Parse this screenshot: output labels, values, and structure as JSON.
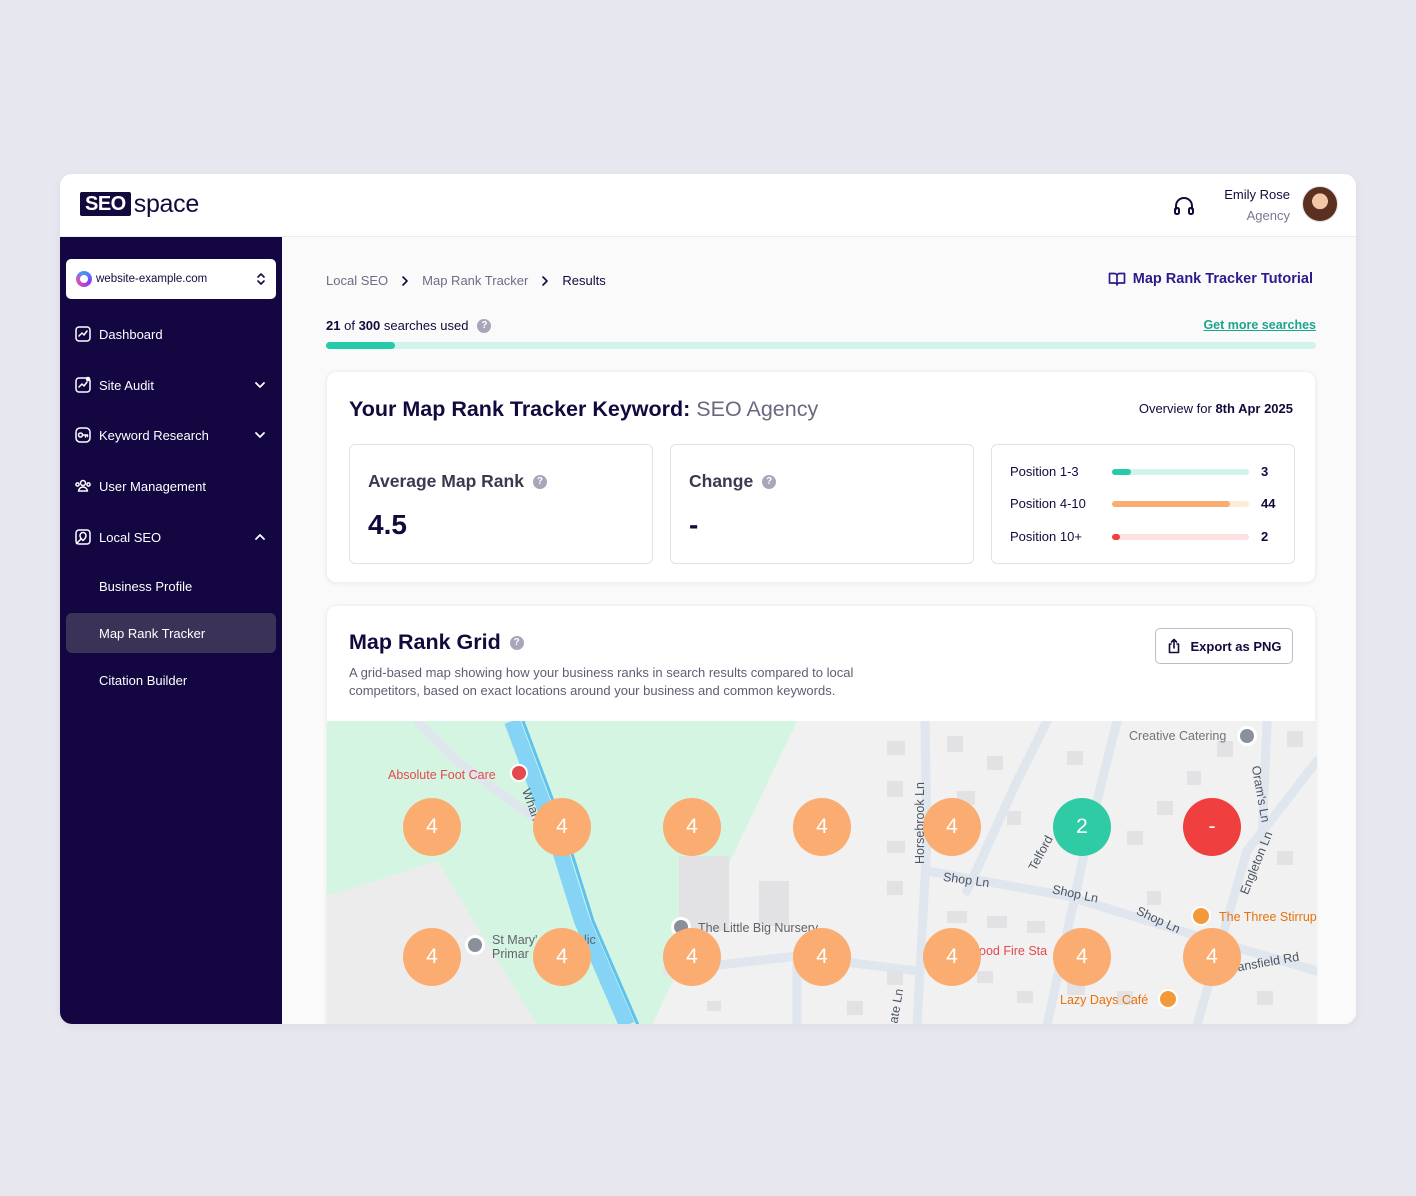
{
  "brand": {
    "logo_box": "SEO",
    "logo_word": "space"
  },
  "user": {
    "name": "Emily Rose",
    "role": "Agency"
  },
  "sidebar": {
    "site": "website-example.com",
    "items": [
      {
        "label": "Dashboard"
      },
      {
        "label": "Site Audit"
      },
      {
        "label": "Keyword Research"
      },
      {
        "label": "User Management"
      },
      {
        "label": "Local SEO"
      }
    ],
    "sub_items": [
      {
        "label": "Business Profile"
      },
      {
        "label": "Map Rank Tracker"
      },
      {
        "label": "Citation Builder"
      }
    ]
  },
  "breadcrumb": [
    "Local SEO",
    "Map Rank Tracker",
    "Results"
  ],
  "tutorial_link": "Map Rank Tracker Tutorial",
  "usage": {
    "used": "21",
    "of": "of",
    "total": "300",
    "suffix": "searches used",
    "get_more": "Get more searches",
    "fraction": 0.07
  },
  "keyword_card": {
    "title": "Your Map Rank Tracker Keyword:",
    "keyword": "SEO Agency",
    "overview_label": "Overview for",
    "overview_date": "8th Apr 2025",
    "avg_label": "Average Map Rank",
    "avg_value": "4.5",
    "change_label": "Change",
    "change_value": "-",
    "positions": [
      {
        "label": "Position 1-3",
        "count": "3",
        "fraction": 0.14,
        "color": "#26c9a8",
        "track": "#d2f3ec"
      },
      {
        "label": "Position 4-10",
        "count": "44",
        "fraction": 0.86,
        "color": "#fbac70",
        "track": "#fdebd9"
      },
      {
        "label": "Position 10+",
        "count": "2",
        "fraction": 0.06,
        "color": "#ef3f3f",
        "track": "#fde0e0"
      }
    ]
  },
  "grid_card": {
    "title": "Map Rank Grid",
    "description": "A grid-based map showing how your business ranks in search results compared to local competitors, based on exact locations around your business and common keywords.",
    "export_label": "Export as PNG"
  },
  "map": {
    "rows": [
      [
        {
          "v": "4",
          "c": "orange"
        },
        {
          "v": "4",
          "c": "orange"
        },
        {
          "v": "4",
          "c": "orange"
        },
        {
          "v": "4",
          "c": "orange"
        },
        {
          "v": "4",
          "c": "orange"
        },
        {
          "v": "2",
          "c": "green"
        },
        {
          "v": "-",
          "c": "red"
        }
      ],
      [
        {
          "v": "4",
          "c": "orange"
        },
        {
          "v": "4",
          "c": "orange"
        },
        {
          "v": "4",
          "c": "orange"
        },
        {
          "v": "4",
          "c": "orange"
        },
        {
          "v": "4",
          "c": "orange"
        },
        {
          "v": "4",
          "c": "orange"
        },
        {
          "v": "4",
          "c": "orange"
        }
      ]
    ],
    "pois": {
      "absolute_foot_care": "Absolute Foot Care",
      "creative_catering": "Creative Catering",
      "st_marys": "St Mary'",
      "st_marys_2": "lic",
      "primary": "Primar",
      "little_big_nursery": "The Little Big Nursery",
      "fire_station": "ood Fire Sta",
      "three_stirrups": "The Three Stirrup",
      "lazy_days": "Lazy Days Café",
      "shop_ln_1": "Shop Ln",
      "shop_ln_2": "Shop Ln",
      "shop_ln_3": "Shop Ln",
      "horsebrook": "Horsebrook Ln",
      "wharf": "Wharf Ln",
      "telford": "Telford",
      "englefield": "Engleton Ln",
      "orams": "Oram's Ln",
      "mansfield": "ansfield Rd",
      "ate_ln": "ate Ln"
    }
  }
}
